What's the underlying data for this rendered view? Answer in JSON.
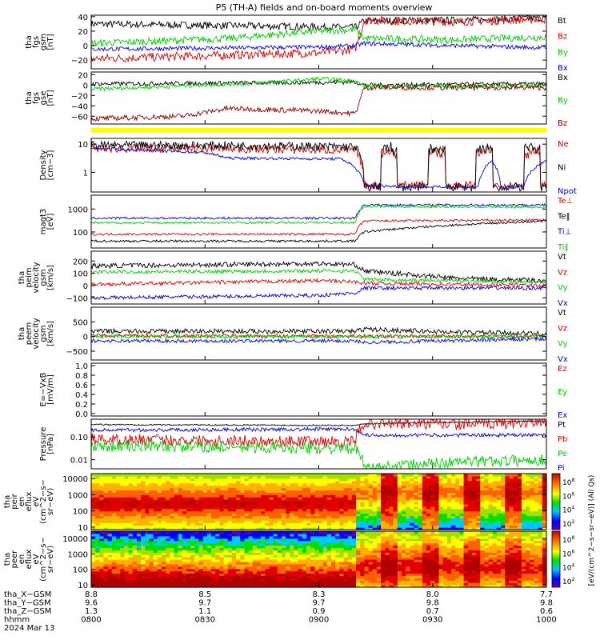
{
  "title": "P5 (TH-A) fields and on-board moments overview",
  "colors": {
    "black": "#000000",
    "red": "#e00000",
    "green": "#00d000",
    "blue": "#0000e0",
    "darkred": "#8b0000",
    "yellow": "#ffff00"
  },
  "chart_data": [
    {
      "id": "fgs_gsm",
      "type": "line",
      "ylabel_lines": [
        "tha",
        "fgs",
        "gsm",
        "[nT]"
      ],
      "ylim": [
        -32,
        42
      ],
      "scale": "linear",
      "yticks": [
        {
          "v": -20,
          "label": "−20"
        },
        {
          "v": 0,
          "label": "0"
        },
        {
          "v": 20,
          "label": "20"
        },
        {
          "v": 40,
          "label": "40"
        }
      ],
      "series": [
        {
          "name": "Bt",
          "color": "black",
          "noise": 5,
          "x": [
            0,
            0.5,
            0.58,
            0.6,
            0.7,
            0.8,
            1
          ],
          "y": [
            30,
            26,
            25,
            34,
            35,
            35,
            38
          ]
        },
        {
          "name": "Bz",
          "color": "red",
          "noise": 6,
          "x": [
            0,
            0.5,
            0.58,
            0.6,
            0.8,
            1
          ],
          "y": [
            -18,
            -10,
            -5,
            35,
            33,
            37
          ]
        },
        {
          "name": "By",
          "color": "green",
          "noise": 5,
          "x": [
            0,
            0.3,
            0.5,
            0.58,
            0.6,
            0.8,
            1
          ],
          "y": [
            3,
            10,
            20,
            22,
            10,
            8,
            12
          ]
        },
        {
          "name": "Bx",
          "color": "blue",
          "noise": 3,
          "x": [
            0,
            0.5,
            0.58,
            0.6,
            1
          ],
          "y": [
            -5,
            -2,
            0,
            3,
            -3
          ]
        }
      ]
    },
    {
      "id": "fgs_gse",
      "type": "line",
      "ylabel_lines": [
        "tha",
        "fgs",
        "gse",
        "[nT]"
      ],
      "ylim": [
        -75,
        25
      ],
      "scale": "linear",
      "yticks": [
        {
          "v": -60,
          "label": "−60"
        },
        {
          "v": -40,
          "label": "−40"
        },
        {
          "v": -20,
          "label": "−20"
        },
        {
          "v": 0,
          "label": "0"
        },
        {
          "v": 20,
          "label": "20"
        }
      ],
      "series": [
        {
          "name": "Bx",
          "color": "black",
          "noise": 4,
          "x": [
            0,
            0.5,
            0.58,
            0.6,
            1
          ],
          "y": [
            2,
            5,
            6,
            0,
            2
          ]
        },
        {
          "name": "By",
          "color": "green",
          "noise": 4,
          "x": [
            0,
            0.4,
            0.5,
            0.58,
            0.6,
            1
          ],
          "y": [
            -8,
            5,
            12,
            8,
            -3,
            -2
          ]
        },
        {
          "name": "Bz",
          "color": "darkred",
          "noise": 5,
          "x": [
            0,
            0.2,
            0.3,
            0.5,
            0.58,
            0.6,
            1
          ],
          "y": [
            -65,
            -60,
            -45,
            -50,
            -55,
            -5,
            -5
          ]
        }
      ],
      "legend": [
        "Bx",
        "By",
        "Bz"
      ]
    },
    {
      "id": "density",
      "type": "line",
      "ylabel_lines": [
        "Density",
        "[cm−3]"
      ],
      "ylim": [
        0.2,
        16
      ],
      "scale": "log",
      "yticks": [
        {
          "v": 1,
          "label": "1"
        },
        {
          "v": 10,
          "label": "10"
        }
      ],
      "series": [
        {
          "name": "Ne",
          "color": "red",
          "noise": 0.15,
          "mode": "bursty",
          "x": [
            0,
            0.3,
            0.58,
            0.6,
            1
          ],
          "y": [
            7,
            7,
            6,
            0.35,
            0.35
          ],
          "hi": 6
        },
        {
          "name": "Ni",
          "color": "black",
          "noise": 0.15,
          "mode": "bursty",
          "x": [
            0,
            0.3,
            0.58,
            0.6,
            1
          ],
          "y": [
            9,
            9,
            8,
            0.3,
            0.3
          ],
          "hi": 8
        },
        {
          "name": "Npot",
          "color": "blue",
          "noise": 0.05,
          "x": [
            0,
            0.25,
            0.3,
            0.55,
            0.6,
            0.7,
            0.85,
            0.88,
            0.9,
            0.95,
            1
          ],
          "y": [
            7,
            5,
            3.2,
            3,
            0.35,
            0.3,
            0.3,
            2.5,
            0.3,
            0.3,
            2.5
          ]
        }
      ]
    },
    {
      "id": "temp",
      "type": "line",
      "ylabel_lines": [
        "magt3",
        "[eV]"
      ],
      "ylim": [
        20,
        4000
      ],
      "scale": "log",
      "yticks": [
        {
          "v": 100,
          "label": "100"
        },
        {
          "v": 1000,
          "label": "1000"
        }
      ],
      "series": [
        {
          "name": "Te⊥",
          "color": "red",
          "noise": 0.05,
          "x": [
            0,
            0.58,
            0.6,
            1
          ],
          "y": [
            80,
            80,
            300,
            330
          ]
        },
        {
          "name": "Te‖",
          "color": "black",
          "noise": 0.05,
          "x": [
            0,
            0.58,
            0.6,
            1
          ],
          "y": [
            40,
            40,
            100,
            300
          ]
        },
        {
          "name": "Ti⊥",
          "color": "blue",
          "noise": 0.05,
          "x": [
            0,
            0.58,
            0.6,
            1
          ],
          "y": [
            400,
            400,
            1500,
            1500
          ]
        },
        {
          "name": "Ti‖",
          "color": "green",
          "noise": 0.05,
          "x": [
            0,
            0.58,
            0.6,
            1
          ],
          "y": [
            250,
            260,
            1300,
            1200
          ]
        }
      ]
    },
    {
      "id": "peim_vel",
      "type": "line",
      "ylabel_lines": [
        "tha",
        "peim",
        "velocity",
        "gsm",
        "[km/s]"
      ],
      "ylim": [
        -150,
        280
      ],
      "scale": "linear",
      "yticks": [
        {
          "v": -100,
          "label": "−100"
        },
        {
          "v": 0,
          "label": "0"
        },
        {
          "v": 100,
          "label": "100"
        },
        {
          "v": 200,
          "label": "200"
        }
      ],
      "series": [
        {
          "name": "Vt",
          "color": "black",
          "noise": 20,
          "x": [
            0,
            0.5,
            0.58,
            0.6,
            0.8,
            1
          ],
          "y": [
            160,
            180,
            170,
            120,
            60,
            40
          ]
        },
        {
          "name": "Vz",
          "color": "red",
          "noise": 15,
          "x": [
            0,
            0.5,
            0.58,
            0.6,
            1
          ],
          "y": [
            10,
            40,
            30,
            20,
            0
          ]
        },
        {
          "name": "Vy",
          "color": "green",
          "noise": 15,
          "x": [
            0,
            0.5,
            0.58,
            0.6,
            1
          ],
          "y": [
            110,
            120,
            120,
            50,
            30
          ]
        },
        {
          "name": "Vx",
          "color": "blue",
          "noise": 15,
          "x": [
            0,
            0.5,
            0.58,
            0.6,
            1
          ],
          "y": [
            -100,
            -80,
            -60,
            -20,
            -20
          ]
        }
      ]
    },
    {
      "id": "peem_vel",
      "type": "line",
      "ylabel_lines": [
        "tha",
        "peem",
        "velocity",
        "gsm",
        "[km/s]"
      ],
      "ylim": [
        -800,
        1000
      ],
      "scale": "linear",
      "yticks": [
        {
          "v": -500,
          "label": "−500"
        },
        {
          "v": 0,
          "label": "0"
        },
        {
          "v": 500,
          "label": "500"
        }
      ],
      "series": [
        {
          "name": "Vt",
          "color": "black",
          "noise": 80,
          "x": [
            0,
            0.58,
            0.6,
            0.8,
            1
          ],
          "y": [
            180,
            180,
            250,
            150,
            100
          ]
        },
        {
          "name": "Vz",
          "color": "red",
          "noise": 60,
          "x": [
            0,
            1
          ],
          "y": [
            30,
            0
          ]
        },
        {
          "name": "Vy",
          "color": "green",
          "noise": 60,
          "x": [
            0,
            1
          ],
          "y": [
            0,
            0
          ]
        },
        {
          "name": "Vx",
          "color": "blue",
          "noise": 60,
          "x": [
            0,
            0.58,
            0.6,
            1
          ],
          "y": [
            -150,
            -150,
            -200,
            -80
          ]
        }
      ]
    },
    {
      "id": "efield",
      "type": "line",
      "ylabel_lines": [
        "E=−VxB",
        "[mV/m]"
      ],
      "ylim": [
        -0.05,
        1.05
      ],
      "scale": "linear",
      "yticks": [
        {
          "v": 0,
          "label": "0.0"
        },
        {
          "v": 0.2,
          "label": "0.2"
        },
        {
          "v": 0.4,
          "label": "0.4"
        },
        {
          "v": 0.6,
          "label": "0.6"
        },
        {
          "v": 0.8,
          "label": "0.8"
        },
        {
          "v": 1.0,
          "label": "1.0"
        }
      ],
      "series": [
        {
          "name": "Ez",
          "color": "red",
          "x": [],
          "y": []
        },
        {
          "name": "Ey",
          "color": "green",
          "x": [],
          "y": []
        },
        {
          "name": "Ex",
          "color": "blue",
          "x": [],
          "y": []
        }
      ]
    },
    {
      "id": "pressure",
      "type": "line",
      "ylabel_lines": [
        "Pressure",
        "[nPa]"
      ],
      "ylim": [
        0.004,
        0.6
      ],
      "scale": "log",
      "yticks": [
        {
          "v": 0.01,
          "label": "0.01"
        },
        {
          "v": 0.1,
          "label": "0.10"
        }
      ],
      "series": [
        {
          "name": "Pt",
          "color": "black",
          "noise": 0.03,
          "x": [
            0,
            0.58,
            0.6,
            1
          ],
          "y": [
            0.35,
            0.32,
            0.38,
            0.5
          ]
        },
        {
          "name": "Pb",
          "color": "red",
          "noise": 0.25,
          "x": [
            0,
            0.58,
            0.6,
            0.8,
            1
          ],
          "y": [
            0.08,
            0.06,
            0.4,
            0.35,
            0.45
          ]
        },
        {
          "name": "Pe",
          "color": "green",
          "noise": 0.25,
          "x": [
            0,
            0.58,
            0.6,
            0.8,
            1
          ],
          "y": [
            0.04,
            0.03,
            0.004,
            0.008,
            0.01
          ]
        },
        {
          "name": "Pi",
          "color": "blue",
          "noise": 0.08,
          "x": [
            0,
            0.58,
            0.6,
            1
          ],
          "y": [
            0.2,
            0.22,
            0.12,
            0.12
          ]
        }
      ]
    },
    {
      "id": "peir",
      "type": "heatmap",
      "ylabel_lines": [
        "tha",
        "peir",
        "en",
        "eflux",
        "eV",
        "(cm^2−s−",
        "sr−eV)"
      ],
      "ylim": [
        7,
        20000
      ],
      "scale": "log",
      "yticks": [
        {
          "v": 10,
          "label": "10"
        },
        {
          "v": 100,
          "label": "100"
        },
        {
          "v": 1000,
          "label": "1000"
        },
        {
          "v": 10000,
          "label": "10000"
        }
      ],
      "colorbar": {
        "ticks": [
          "10^8",
          "10^6",
          "10^4",
          "10^2"
        ],
        "label": "[eV/(cm^2−s−sr−eV)] (All Qs)"
      }
    },
    {
      "id": "peer",
      "type": "heatmap",
      "ylabel_lines": [
        "tha",
        "peer",
        "en",
        "eflux",
        "eV",
        "(cm^2−s−",
        "sr−eV)"
      ],
      "ylim": [
        7,
        30000
      ],
      "scale": "log",
      "yticks": [
        {
          "v": 10,
          "label": "10"
        },
        {
          "v": 100,
          "label": "100"
        },
        {
          "v": 1000,
          "label": "1000"
        },
        {
          "v": 10000,
          "label": "10000"
        }
      ],
      "colorbar": {
        "ticks": [
          "10^8",
          "10^6",
          "10^4",
          "10^2"
        ],
        "label": "[eV/(cm^2−s−sr−eV)] (All Qs)"
      }
    }
  ],
  "xaxis": {
    "rows": [
      {
        "label": "tha_X−GSM",
        "values": [
          "8.8",
          "8.5",
          "8.3",
          "8.0",
          "7.7"
        ]
      },
      {
        "label": "tha_Y−GSM",
        "values": [
          "9.6",
          "9.7",
          "9.7",
          "9.8",
          "9.8"
        ]
      },
      {
        "label": "tha_Z−GSM",
        "values": [
          "1.3",
          "1.1",
          "0.9",
          "0.7",
          "0.6"
        ]
      },
      {
        "label": "hhmm",
        "values": [
          "0800",
          "0830",
          "0900",
          "0930",
          "1000"
        ]
      }
    ],
    "date": "2024 Mar 13"
  }
}
